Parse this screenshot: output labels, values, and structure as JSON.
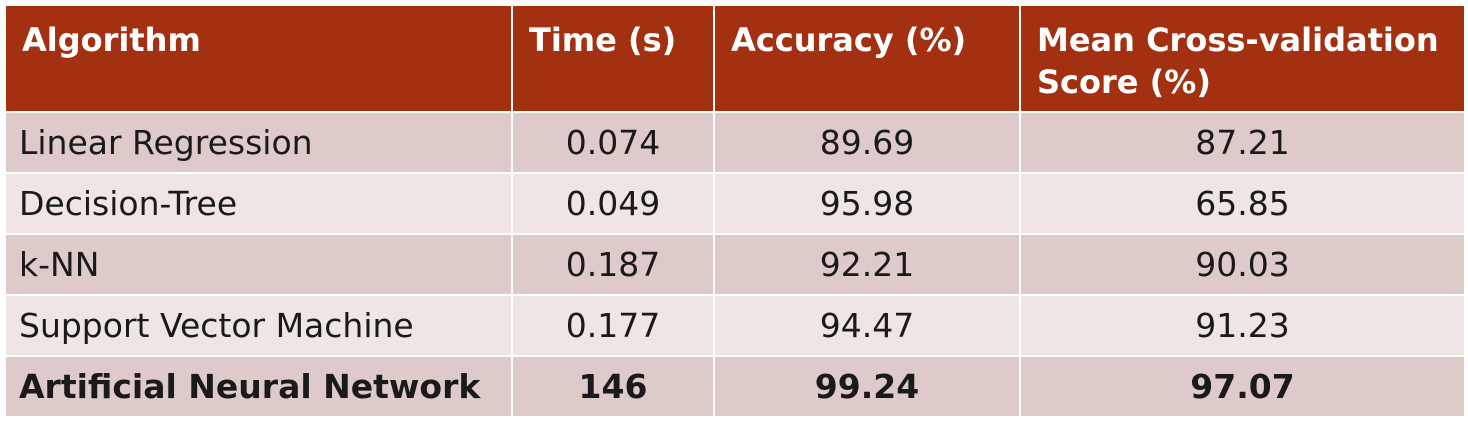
{
  "table": {
    "headers": [
      "Algorithm",
      "Time (s)",
      "Accuracy (%)",
      "Mean Cross-validation Score (%)"
    ],
    "rows": [
      [
        "Linear Regression",
        "0.074",
        "89.69",
        "87.21"
      ],
      [
        "Decision-Tree",
        "0.049",
        "95.98",
        "65.85"
      ],
      [
        "k-NN",
        "0.187",
        "92.21",
        "90.03"
      ],
      [
        "Support Vector Machine",
        "0.177",
        "94.47",
        "91.23"
      ],
      [
        "Artificial Neural Network",
        "146",
        "99.24",
        "97.07"
      ]
    ],
    "highlighted_row": 4,
    "colors": {
      "header_bg": "#a33010",
      "header_text": "#ffffff",
      "row_odd_bg": "#dfcaca",
      "row_even_bg": "#efe5e5"
    }
  }
}
